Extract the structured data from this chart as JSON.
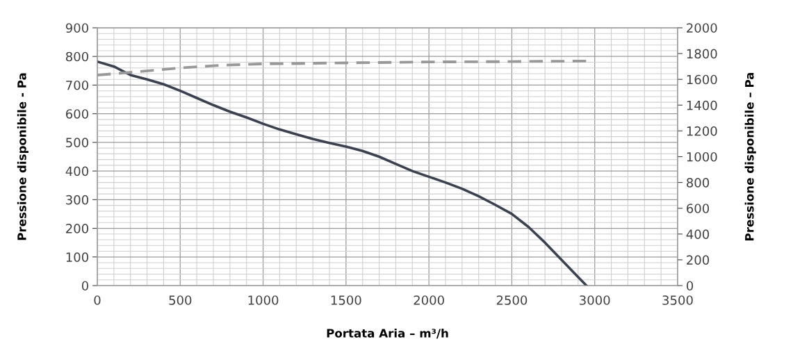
{
  "chart_data": {
    "type": "line",
    "xlabel": "Portata Aria – m³/h",
    "ylabel": "Pressione disponibile - Pa",
    "y2label": "Pressione disponibile – Pa",
    "xlim": [
      0,
      3500
    ],
    "xticks": [
      0,
      500,
      1000,
      1500,
      2000,
      2500,
      3000,
      3500
    ],
    "ylim": [
      0,
      900
    ],
    "yticks": [
      0,
      100,
      200,
      300,
      400,
      500,
      600,
      700,
      800,
      900
    ],
    "y2lim": [
      0,
      2000
    ],
    "y2ticks": [
      0,
      200,
      400,
      600,
      800,
      1000,
      1200,
      1400,
      1600,
      1800,
      2000
    ],
    "grid": true,
    "marker": "none",
    "series": [
      {
        "color": "#3a4252",
        "line_style": "solid",
        "x": [
          0,
          100,
          200,
          300,
          400,
          500,
          600,
          700,
          800,
          900,
          1000,
          1100,
          1200,
          1300,
          1400,
          1500,
          1600,
          1700,
          1800,
          1900,
          2000,
          2100,
          2200,
          2300,
          2400,
          2500,
          2600,
          2700,
          2800,
          2900,
          2950
        ],
        "values": [
          782,
          765,
          735,
          720,
          703,
          680,
          655,
          630,
          607,
          587,
          565,
          545,
          528,
          512,
          498,
          485,
          470,
          450,
          425,
          400,
          380,
          360,
          338,
          312,
          282,
          250,
          205,
          150,
          90,
          30,
          0
        ]
      },
      {
        "color": "#999999",
        "line_style": "dashed",
        "axis": "y2",
        "x": [
          0,
          250,
          500,
          750,
          1000,
          1500,
          2000,
          2500,
          2950
        ],
        "values": [
          1633,
          1660,
          1689,
          1710,
          1720,
          1728,
          1735,
          1738,
          1742
        ]
      }
    ]
  }
}
